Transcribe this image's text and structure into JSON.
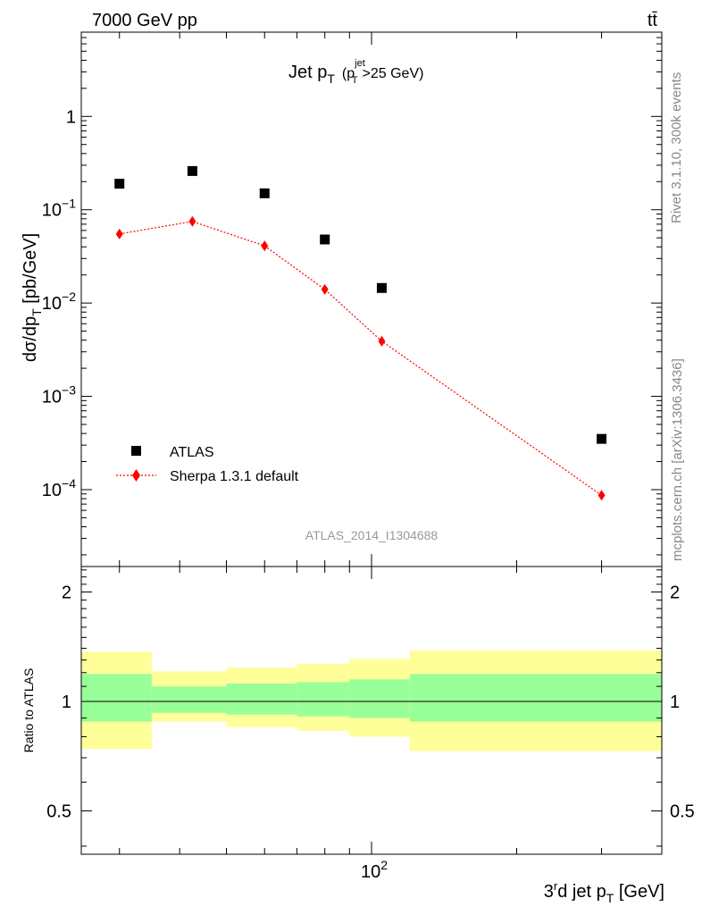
{
  "header": {
    "left": "7000 GeV pp",
    "right": "tt̄"
  },
  "side": {
    "rivet": "Rivet 3.1.10,  300k events",
    "mcplots": "mcplots.cern.ch [arXiv:1306.3436]"
  },
  "chart_data": [
    {
      "type": "scatter",
      "panel": "main",
      "title": "Jet pT (pTjet>25 GeV)",
      "title_parts": {
        "base": "Jet p",
        "sub": "T",
        "paren_open": "(p",
        "paren_sup": "jet",
        "paren_sub": "T",
        "paren_close": ">25 GeV)"
      },
      "analysis_label": "ATLAS_2014_I1304688",
      "ylabel": "dσ/dpT [pb/GeV]",
      "ylabel_parts": {
        "main": "dσ/dp",
        "sub": "T",
        "unit": " [pb/GeV]"
      },
      "yscale": "log",
      "xscale": "log",
      "xlim": [
        25,
        400
      ],
      "ylim": [
        1.5e-05,
        8
      ],
      "y_tick_labels": [
        "10^-4",
        "10^-3",
        "10^-2",
        "10^-1",
        "1"
      ],
      "legend_position": "bottom-left",
      "series": [
        {
          "name": "ATLAS",
          "marker": "square",
          "color": "#000000",
          "x": [
            30,
            42.5,
            60,
            80,
            105,
            300
          ],
          "y": [
            0.19,
            0.26,
            0.15,
            0.048,
            0.0145,
            0.00035
          ]
        },
        {
          "name": "Sherpa 1.3.1 default",
          "marker": "diamond",
          "line": "dotted",
          "color": "#ff0000",
          "x": [
            30,
            42.5,
            60,
            80,
            105,
            300
          ],
          "y": [
            0.055,
            0.075,
            0.041,
            0.014,
            0.0039,
            8.7e-05
          ]
        }
      ]
    },
    {
      "type": "area",
      "panel": "ratio",
      "ylabel": "Ratio to ATLAS",
      "xlabel": "3rd jet pT [GeV]",
      "xlabel_parts": {
        "a": "3",
        "sup": "r",
        "b": "d jet p",
        "sub": "T",
        "unit": " [GeV]"
      },
      "xscale": "log",
      "xlim": [
        25,
        400
      ],
      "ylim": [
        0.38,
        2.35
      ],
      "y_ticks": [
        0.5,
        1,
        2
      ],
      "y_tick_labels": [
        "0.5",
        "1",
        "2",
        "0.5",
        "1",
        "2"
      ],
      "x_tick_label": "10^2",
      "x_tick_value": 100,
      "reference_line": 1,
      "bins": [
        {
          "xlo": 25,
          "xhi": 35,
          "yellow": [
            0.74,
            1.37
          ],
          "green": [
            0.88,
            1.19
          ]
        },
        {
          "xlo": 35,
          "xhi": 50,
          "yellow": [
            0.88,
            1.21
          ],
          "green": [
            0.93,
            1.1
          ]
        },
        {
          "xlo": 50,
          "xhi": 70,
          "yellow": [
            0.85,
            1.24
          ],
          "green": [
            0.92,
            1.12
          ]
        },
        {
          "xlo": 70,
          "xhi": 90,
          "yellow": [
            0.83,
            1.27
          ],
          "green": [
            0.91,
            1.13
          ]
        },
        {
          "xlo": 90,
          "xhi": 120,
          "yellow": [
            0.8,
            1.31
          ],
          "green": [
            0.9,
            1.15
          ]
        },
        {
          "xlo": 120,
          "xhi": 400,
          "yellow": [
            0.73,
            1.38
          ],
          "green": [
            0.88,
            1.19
          ]
        }
      ],
      "colors": {
        "yellow": "#ffff99",
        "green": "#99ff99"
      }
    }
  ]
}
